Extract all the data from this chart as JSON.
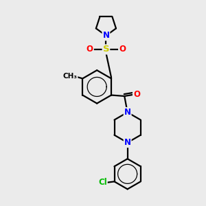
{
  "background_color": "#ebebeb",
  "bond_color": "#000000",
  "atom_colors": {
    "N": "#0000ff",
    "O": "#ff0000",
    "S": "#cccc00",
    "Cl": "#00bb00",
    "C": "#000000"
  },
  "line_width": 1.6,
  "font_size": 8.5
}
